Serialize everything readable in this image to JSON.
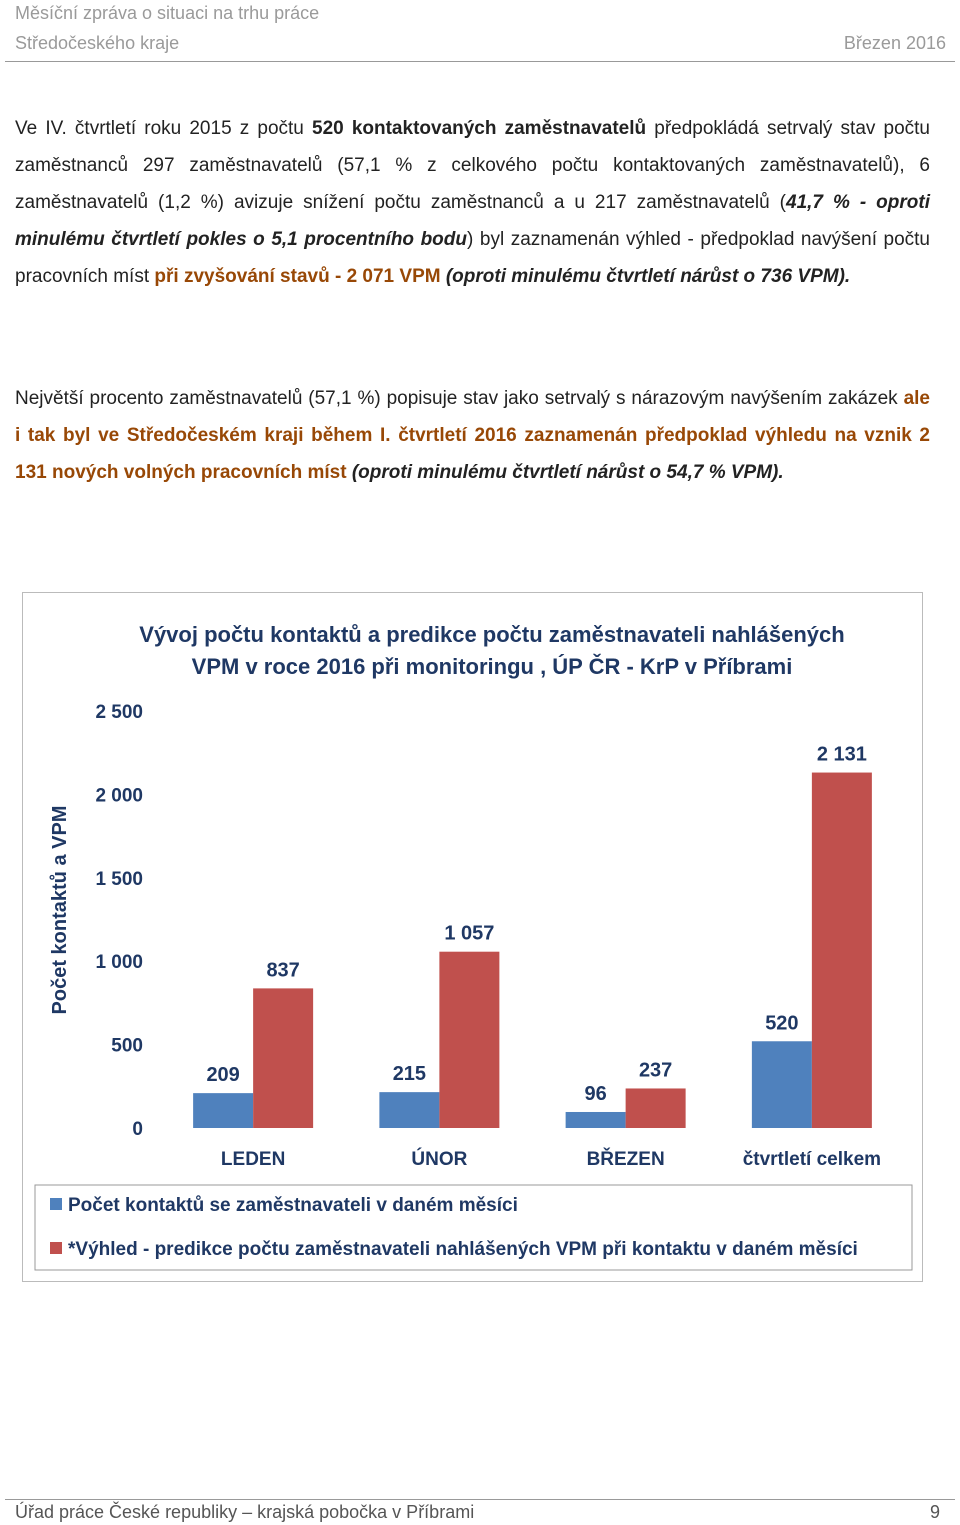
{
  "header": {
    "title_line1": "Měsíční zpráva o situaci na trhu práce",
    "title_line2": "Středočeského kraje",
    "date": "Březen 2016"
  },
  "paragraphs": [
    [
      "Ve IV. čtvrtletí roku 2015 z počtu ",
      "520 kontaktovaných zaměstnavatelů",
      " předpokládá setrvalý stav počtu zaměstnanců 297 zaměstnavatelů (57,1 % z celkového počtu kontaktovaných zaměstnavatelů), 6 zaměstnavatelů (1,2 %) avizuje snížení počtu zaměstnanců a u 217 zaměstnavatelů (",
      "41,7 % - oproti minulému čtvrtletí pokles o 5,1 procentního bodu",
      ") byl zaznamenán výhled - předpoklad navýšení počtu pracovních míst ",
      "při zvyšování stavů - 2 071 VPM",
      " (oproti minulému čtvrtletí nárůst o 736 VPM)."
    ],
    [
      "Největší procento zaměstnavatelů (57,1 %) popisuje stav jako setrvalý s nárazovým navýšením zakázek ",
      "ale i tak byl ve Středočeském kraji během I. čtvrtletí 2016 zaznamenán předpoklad výhledu na vznik 2 131 nových volných pracovních míst",
      " (oproti minulému čtvrtletí nárůst o 54,7 % VPM)."
    ]
  ],
  "chart": {
    "type": "bar",
    "title_line1": "Vývoj počtu kontaktů a predikce počtu zaměstnavateli nahlášených",
    "title_line2": "VPM v roce 2016 při monitoringu , ÚP ČR - KrP v Příbrami",
    "y_label": "Počet kontaktů a VPM",
    "categories": [
      "LEDEN",
      "ÚNOR",
      "BŘEZEN",
      "čtvrtletí celkem"
    ],
    "series": [
      {
        "name": "Počet kontaktů se zaměstnavateli v daném měsíci",
        "color": "#4f81bd",
        "values": [
          209,
          215,
          96,
          520
        ],
        "value_labels": [
          "209",
          "215",
          "96",
          "520"
        ]
      },
      {
        "name": "*Výhled - predikce počtu zaměstnavateli nahlášených VPM při kontaktu v daném měsíci",
        "color": "#c0504d",
        "values": [
          837,
          1057,
          237,
          2131
        ],
        "value_labels": [
          "837",
          "1 057",
          "237",
          "2 131"
        ]
      }
    ],
    "ylim": [
      0,
      2500
    ],
    "yticks": [
      0,
      500,
      {
        "value": 1000,
        "label": "1 000"
      },
      {
        "value": 1500,
        "label": "1 500"
      },
      {
        "value": 2000,
        "label": "2 000"
      },
      {
        "value": 2500,
        "label": "2 500"
      }
    ]
  },
  "footer": {
    "text": "Úřad práce České republiky – krajská pobočka v Příbrami",
    "page": "9"
  }
}
